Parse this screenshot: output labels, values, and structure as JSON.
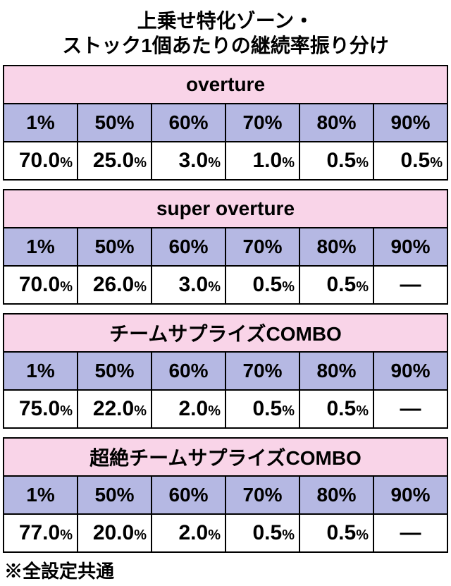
{
  "title_line1": "上乗せ特化ゾーン・",
  "title_line2": "ストック1個あたりの継続率振り分け",
  "footnote": "※全設定共通",
  "percent_headers": [
    "1%",
    "50%",
    "60%",
    "70%",
    "80%",
    "90%"
  ],
  "sections": [
    {
      "name": "overture",
      "values": [
        "70.0",
        "25.0",
        "3.0",
        "1.0",
        "0.5",
        "0.5"
      ]
    },
    {
      "name": "super overture",
      "values": [
        "70.0",
        "26.0",
        "3.0",
        "0.5",
        "0.5",
        "—"
      ]
    },
    {
      "name": "チームサプライズCOMBO",
      "values": [
        "75.0",
        "22.0",
        "2.0",
        "0.5",
        "0.5",
        "—"
      ]
    },
    {
      "name": "超絶チームサプライズCOMBO",
      "values": [
        "77.0",
        "20.0",
        "2.0",
        "0.5",
        "0.5",
        "—"
      ]
    }
  ],
  "colors": {
    "pink": "#f9d4e8",
    "lavender": "#b5b8e3",
    "border": "#000000",
    "bg": "#ffffff"
  }
}
